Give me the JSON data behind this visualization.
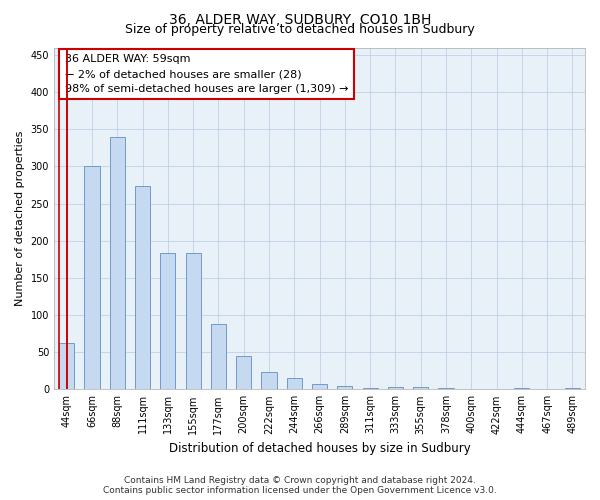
{
  "title": "36, ALDER WAY, SUDBURY, CO10 1BH",
  "subtitle": "Size of property relative to detached houses in Sudbury",
  "xlabel": "Distribution of detached houses by size in Sudbury",
  "ylabel": "Number of detached properties",
  "categories": [
    "44sqm",
    "66sqm",
    "88sqm",
    "111sqm",
    "133sqm",
    "155sqm",
    "177sqm",
    "200sqm",
    "222sqm",
    "244sqm",
    "266sqm",
    "289sqm",
    "311sqm",
    "333sqm",
    "355sqm",
    "378sqm",
    "400sqm",
    "422sqm",
    "444sqm",
    "467sqm",
    "489sqm"
  ],
  "values": [
    62,
    301,
    340,
    274,
    184,
    184,
    88,
    45,
    23,
    15,
    7,
    5,
    2,
    3,
    3,
    2,
    1,
    0,
    2,
    1,
    2
  ],
  "bar_color": "#c5d9f0",
  "bar_edge_color": "#6090c0",
  "bar_width": 0.6,
  "marker_color": "#cc0000",
  "annotation_text": "36 ALDER WAY: 59sqm\n← 2% of detached houses are smaller (28)\n98% of semi-detached houses are larger (1,309) →",
  "annotation_box_color": "#ffffff",
  "annotation_box_edge_color": "#cc0000",
  "ylim": [
    0,
    460
  ],
  "yticks": [
    0,
    50,
    100,
    150,
    200,
    250,
    300,
    350,
    400,
    450
  ],
  "bg_color": "#e8f0f8",
  "grid_color": "#b8cce4",
  "footer_line1": "Contains HM Land Registry data © Crown copyright and database right 2024.",
  "footer_line2": "Contains public sector information licensed under the Open Government Licence v3.0.",
  "title_fontsize": 10,
  "subtitle_fontsize": 9,
  "xlabel_fontsize": 8.5,
  "ylabel_fontsize": 8,
  "tick_fontsize": 7,
  "annotation_fontsize": 8,
  "footer_fontsize": 6.5
}
